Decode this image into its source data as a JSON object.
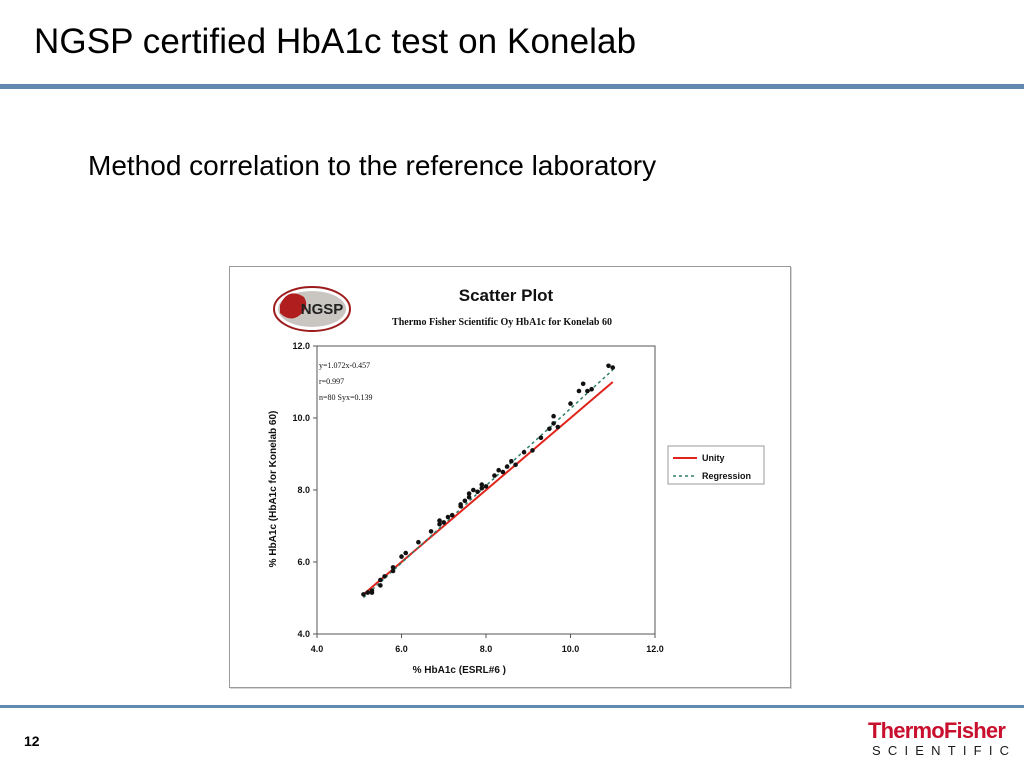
{
  "slide": {
    "title": "NGSP certified HbA1c test on Konelab",
    "subtitle": "Method correlation to the reference laboratory",
    "page_number": "12"
  },
  "brand": {
    "line1": "ThermoFisher",
    "line2": "SCIENTIFIC"
  },
  "figure": {
    "logo_text": "NGSP"
  },
  "chart_data": {
    "type": "scatter",
    "title": "Scatter Plot",
    "subtitle": "Thermo Fisher Scientific Oy HbA1c for Konelab 60",
    "xlabel": "% HbA1c (ESRL#6 )",
    "ylabel": "% HbA1c (HbA1c for Konelab 60)",
    "xlim": [
      4.0,
      12.0
    ],
    "ylim": [
      4.0,
      12.0
    ],
    "x_ticks": [
      "4.0",
      "6.0",
      "8.0",
      "10.0",
      "12.0"
    ],
    "y_ticks": [
      "4.0",
      "6.0",
      "8.0",
      "10.0",
      "12.0"
    ],
    "grid": false,
    "legend_position": "right",
    "stats": [
      "y=1.072x-0.457",
      "r=0.997",
      "n=80 Syx=0.139"
    ],
    "lines": [
      {
        "name": "Unity",
        "slope": 1.0,
        "intercept": 0.0,
        "x_range": [
          5.1,
          11.0
        ],
        "color": "#e0231b",
        "style": "solid"
      },
      {
        "name": "Regression",
        "slope": 1.072,
        "intercept": -0.457,
        "x_range": [
          5.1,
          11.0
        ],
        "color": "#2f7d6a",
        "style": "dashed"
      }
    ],
    "series": [
      {
        "marker_color": "#111111",
        "x": [
          5.1,
          5.2,
          5.3,
          5.3,
          5.5,
          5.5,
          5.6,
          5.8,
          5.8,
          6.0,
          6.1,
          6.4,
          6.7,
          6.9,
          6.9,
          7.0,
          7.1,
          7.2,
          7.4,
          7.4,
          7.5,
          7.6,
          7.6,
          7.7,
          7.8,
          7.9,
          7.9,
          8.0,
          8.2,
          8.3,
          8.4,
          8.5,
          8.6,
          8.7,
          8.9,
          9.1,
          9.3,
          9.5,
          9.6,
          9.6,
          9.7,
          10.0,
          10.2,
          10.3,
          10.4,
          10.5,
          10.9,
          11.0
        ],
        "y": [
          5.1,
          5.15,
          5.15,
          5.2,
          5.35,
          5.5,
          5.6,
          5.75,
          5.85,
          6.15,
          6.25,
          6.55,
          6.85,
          7.05,
          7.15,
          7.1,
          7.25,
          7.3,
          7.55,
          7.6,
          7.7,
          7.8,
          7.9,
          8.0,
          7.95,
          8.05,
          8.15,
          8.1,
          8.4,
          8.55,
          8.5,
          8.65,
          8.8,
          8.7,
          9.05,
          9.1,
          9.45,
          9.7,
          10.05,
          9.85,
          9.75,
          10.4,
          10.75,
          10.95,
          10.75,
          10.8,
          11.45,
          11.4
        ]
      }
    ]
  }
}
